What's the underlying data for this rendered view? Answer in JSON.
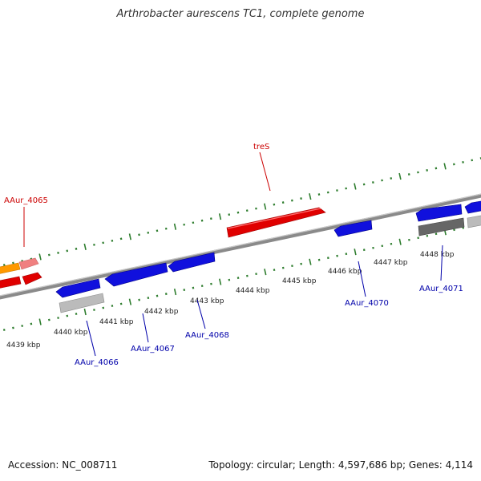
{
  "title": "Arthrobacter aurescens TC1, complete genome",
  "footer": {
    "accession": "Accession: NC_008711",
    "summary": "Topology: circular; Length: 4,597,686 bp; Genes: 4,114"
  },
  "colors": {
    "backbone": "#888888",
    "tick": "#2e7d2e",
    "forward_gene": "#e00000",
    "forward_gene_alt": "#ff9900",
    "forward_gene_light": "#f08080",
    "reverse_gene": "#1010dd",
    "reverse_gene_gray": "#bbbbbb",
    "reverse_gene_dark": "#666666",
    "label_forward": "#cc0000",
    "label_reverse": "#0000aa"
  },
  "kbp_ticks": [
    "4439 kbp",
    "4440 kbp",
    "4441 kbp",
    "4442 kbp",
    "4443 kbp",
    "4444 kbp",
    "4445 kbp",
    "4446 kbp",
    "4447 kbp",
    "4448 kbp"
  ],
  "gene_labels": {
    "forward": [
      "AAur_4065",
      "treS"
    ],
    "reverse": [
      "AAur_4066",
      "AAur_4067",
      "AAur_4068",
      "AAur_4070",
      "AAur_4071"
    ]
  }
}
